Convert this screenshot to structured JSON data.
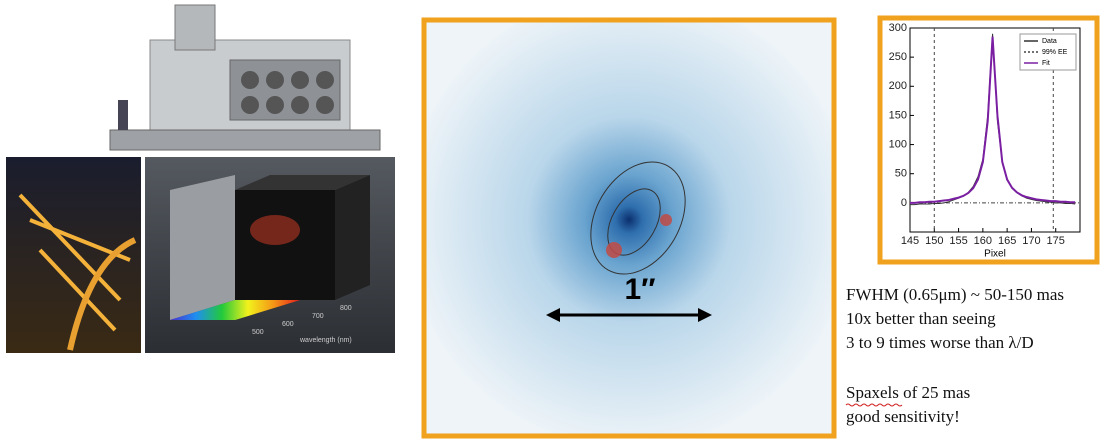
{
  "cube_labels": {
    "axis_title": "wavelength (nm)",
    "ticks": [
      "500",
      "600",
      "700",
      "800"
    ]
  },
  "image_label": "1″",
  "notes": [
    "FWHM (0.65μm) ~ 50-150 mas",
    "10x better than seeing",
    "3 to 9 times worse than λ/D",
    "Spaxels of 25 mas",
    "good sensitivity!"
  ],
  "chart_data": {
    "type": "line",
    "xlabel": "Pixel",
    "x": [
      145,
      146,
      147,
      148,
      149,
      150,
      151,
      152,
      153,
      154,
      155,
      156,
      157,
      158,
      159,
      160,
      161,
      162,
      163,
      164,
      165,
      166,
      167,
      168,
      169,
      170,
      171,
      172,
      173,
      174,
      175,
      176,
      177,
      178,
      179
    ],
    "series": [
      {
        "name": "Data",
        "color": "#333333",
        "values": [
          -3,
          -3,
          -2,
          -2,
          -2,
          -1,
          -1,
          0,
          2,
          5,
          8,
          12,
          18,
          28,
          45,
          75,
          150,
          290,
          140,
          70,
          40,
          25,
          18,
          12,
          8,
          6,
          4,
          3,
          2,
          1,
          0,
          0,
          -1,
          -1,
          -2
        ]
      },
      {
        "name": "Fit",
        "color": "#7b1fa2",
        "values": [
          0,
          0,
          1,
          1,
          2,
          2,
          3,
          4,
          5,
          7,
          9,
          12,
          17,
          25,
          40,
          70,
          140,
          285,
          150,
          70,
          40,
          26,
          18,
          13,
          10,
          8,
          6,
          5,
          4,
          3,
          3,
          2,
          2,
          1,
          1
        ]
      }
    ],
    "reference_lines": {
      "name": "99% EE",
      "color": "#444444",
      "x": [
        150,
        174.5
      ]
    },
    "xlim": [
      145,
      180
    ],
    "xticks": [
      145,
      150,
      155,
      160,
      165,
      170,
      175
    ],
    "ylim": [
      -50,
      300
    ],
    "yticks": [
      0,
      50,
      100,
      150,
      200,
      250,
      300
    ],
    "legend": "upper right"
  }
}
